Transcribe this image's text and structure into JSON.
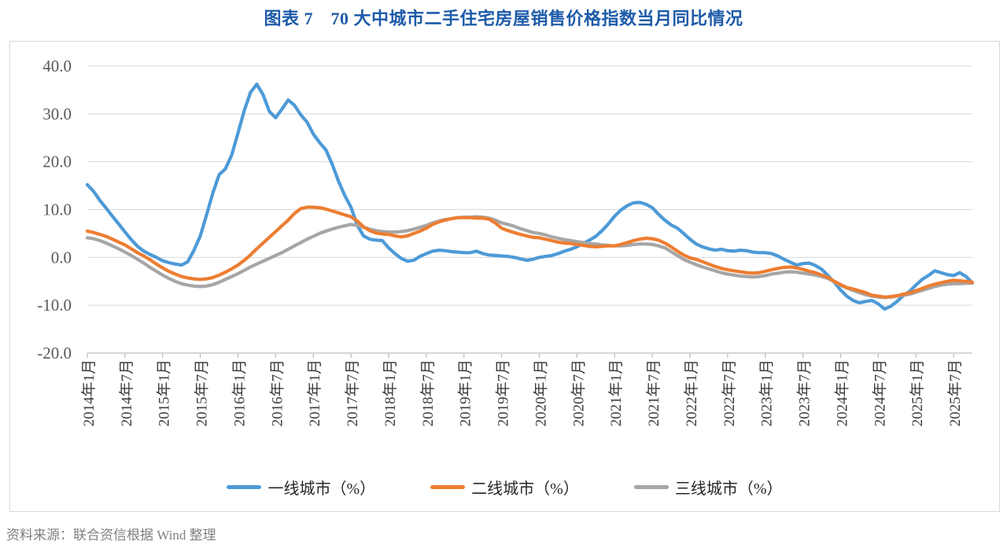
{
  "title": "图表 7　70 大中城市二手住宅房屋销售价格指数当月同比情况",
  "source_note": "资料来源：联合资信根据 Wind 整理",
  "colors": {
    "title": "#1d5ba9",
    "gridline": "#d9d9d9",
    "axis_line": "#bfbfbf",
    "y_tick_label": "#595959",
    "x_tick_label": "#3b3b3b",
    "first_tier": "#4d9ad7",
    "second_tier": "#ed7d31",
    "third_tier": "#a6a6a6"
  },
  "chart_data": {
    "type": "line",
    "title": "图表 7　70 大中城市二手住宅房屋销售价格指数当月同比情况",
    "frequency": "monthly",
    "x_start": "2014-01",
    "x_end": "2025-10",
    "ylim": [
      -20,
      40
    ],
    "y_tick_step": 10,
    "grid": "horizontal",
    "legend_position": "bottom",
    "y_tick_labels": [
      "40.0",
      "30.0",
      "20.0",
      "10.0",
      "0.0",
      "-10.0",
      "-20.0"
    ],
    "y_tick_values": [
      40,
      30,
      20,
      10,
      0,
      -10,
      -20
    ],
    "x_tick_labels": [
      "2014年1月",
      "2014年7月",
      "2015年1月",
      "2015年7月",
      "2016年1月",
      "2016年7月",
      "2017年1月",
      "2017年7月",
      "2018年1月",
      "2018年7月",
      "2019年1月",
      "2019年7月",
      "2020年1月",
      "2020年7月",
      "2021年1月",
      "2021年7月",
      "2022年1月",
      "2022年7月",
      "2023年1月",
      "2023年7月",
      "2024年1月",
      "2024年7月",
      "2025年1月",
      "2025年7月"
    ],
    "x_tick_every_n_months": 6,
    "series": [
      {
        "name": "一线城市（%）",
        "color": "#4d9ad7",
        "values": [
          15.2,
          13.8,
          11.9,
          10.3,
          8.6,
          7.0,
          5.3,
          3.7,
          2.3,
          1.3,
          0.6,
          0.0,
          -0.7,
          -1.1,
          -1.4,
          -1.6,
          -0.9,
          1.5,
          4.5,
          8.9,
          13.5,
          17.3,
          18.5,
          21.4,
          26.0,
          30.7,
          34.5,
          36.2,
          34.0,
          30.5,
          29.2,
          31.0,
          32.9,
          31.8,
          29.8,
          28.3,
          25.8,
          24.0,
          22.5,
          19.5,
          16.0,
          13.0,
          10.5,
          6.7,
          4.5,
          3.8,
          3.6,
          3.5,
          2.0,
          0.8,
          -0.2,
          -0.8,
          -0.6,
          0.2,
          0.8,
          1.3,
          1.5,
          1.4,
          1.2,
          1.1,
          1.0,
          1.0,
          1.3,
          0.8,
          0.5,
          0.4,
          0.3,
          0.2,
          0.0,
          -0.3,
          -0.6,
          -0.4,
          0.0,
          0.2,
          0.4,
          0.8,
          1.3,
          1.7,
          2.2,
          2.9,
          3.6,
          4.4,
          5.6,
          7.0,
          8.6,
          9.9,
          10.8,
          11.4,
          11.5,
          11.1,
          10.4,
          9.0,
          7.8,
          6.8,
          6.1,
          5.0,
          3.8,
          2.8,
          2.2,
          1.8,
          1.5,
          1.7,
          1.4,
          1.3,
          1.5,
          1.4,
          1.1,
          1.0,
          1.0,
          0.8,
          0.3,
          -0.4,
          -1.0,
          -1.6,
          -1.3,
          -1.2,
          -1.7,
          -2.5,
          -3.8,
          -5.2,
          -6.8,
          -8.1,
          -9.0,
          -9.5,
          -9.2,
          -9.0,
          -9.7,
          -10.8,
          -10.2,
          -9.2,
          -8.0,
          -7.1,
          -5.8,
          -4.6,
          -3.8,
          -2.8,
          -3.2,
          -3.6,
          -3.8,
          -3.2,
          -4.0,
          -5.3
        ]
      },
      {
        "name": "二线城市（%）",
        "color": "#ed7d31",
        "values": [
          5.5,
          5.2,
          4.8,
          4.4,
          3.8,
          3.2,
          2.6,
          1.8,
          1.0,
          0.3,
          -0.5,
          -1.4,
          -2.2,
          -2.9,
          -3.5,
          -4.0,
          -4.3,
          -4.5,
          -4.6,
          -4.5,
          -4.2,
          -3.7,
          -3.1,
          -2.4,
          -1.6,
          -0.6,
          0.5,
          1.8,
          3.0,
          4.2,
          5.4,
          6.6,
          7.8,
          9.2,
          10.2,
          10.5,
          10.5,
          10.4,
          10.1,
          9.7,
          9.3,
          8.9,
          8.5,
          7.6,
          6.4,
          5.6,
          5.1,
          4.9,
          4.8,
          4.5,
          4.3,
          4.5,
          5.0,
          5.5,
          6.1,
          6.9,
          7.4,
          7.8,
          8.1,
          8.3,
          8.3,
          8.3,
          8.2,
          8.2,
          8.0,
          7.2,
          6.1,
          5.6,
          5.2,
          4.8,
          4.5,
          4.2,
          4.1,
          3.8,
          3.5,
          3.2,
          3.0,
          2.9,
          2.7,
          2.5,
          2.3,
          2.2,
          2.3,
          2.4,
          2.4,
          2.7,
          3.1,
          3.5,
          3.8,
          4.0,
          3.9,
          3.6,
          3.0,
          2.2,
          1.3,
          0.5,
          -0.1,
          -0.4,
          -0.9,
          -1.4,
          -1.9,
          -2.3,
          -2.6,
          -2.8,
          -3.0,
          -3.2,
          -3.3,
          -3.2,
          -2.9,
          -2.6,
          -2.3,
          -2.1,
          -2.0,
          -2.2,
          -2.5,
          -2.9,
          -3.2,
          -3.7,
          -4.2,
          -5.0,
          -5.7,
          -6.3,
          -6.6,
          -7.0,
          -7.4,
          -7.9,
          -8.1,
          -8.3,
          -8.2,
          -8.0,
          -7.7,
          -7.4,
          -7.0,
          -6.5,
          -6.0,
          -5.6,
          -5.3,
          -5.0,
          -4.8,
          -4.9,
          -5.0,
          -5.2
        ]
      },
      {
        "name": "三线城市（%）",
        "color": "#a6a6a6",
        "values": [
          4.1,
          3.9,
          3.5,
          3.0,
          2.4,
          1.8,
          1.1,
          0.4,
          -0.4,
          -1.2,
          -2.1,
          -2.9,
          -3.7,
          -4.4,
          -5.0,
          -5.5,
          -5.8,
          -6.0,
          -6.1,
          -6.0,
          -5.7,
          -5.2,
          -4.6,
          -4.0,
          -3.4,
          -2.7,
          -2.0,
          -1.4,
          -0.8,
          -0.2,
          0.4,
          1.0,
          1.7,
          2.4,
          3.1,
          3.8,
          4.4,
          5.0,
          5.5,
          5.9,
          6.3,
          6.6,
          6.9,
          6.7,
          6.3,
          5.9,
          5.6,
          5.4,
          5.3,
          5.3,
          5.4,
          5.6,
          5.9,
          6.3,
          6.7,
          7.2,
          7.6,
          7.9,
          8.1,
          8.3,
          8.4,
          8.4,
          8.5,
          8.4,
          8.2,
          7.8,
          7.2,
          6.9,
          6.5,
          6.0,
          5.6,
          5.2,
          5.0,
          4.7,
          4.3,
          4.0,
          3.7,
          3.5,
          3.3,
          3.1,
          2.9,
          2.8,
          2.6,
          2.5,
          2.4,
          2.4,
          2.5,
          2.7,
          2.8,
          2.8,
          2.7,
          2.4,
          2.0,
          1.2,
          0.4,
          -0.4,
          -1.0,
          -1.5,
          -2.0,
          -2.4,
          -2.8,
          -3.2,
          -3.5,
          -3.7,
          -3.9,
          -4.0,
          -4.1,
          -4.0,
          -3.8,
          -3.5,
          -3.3,
          -3.1,
          -3.0,
          -3.1,
          -3.3,
          -3.5,
          -3.7,
          -4.0,
          -4.4,
          -5.1,
          -5.8,
          -6.4,
          -6.9,
          -7.4,
          -7.8,
          -8.1,
          -8.3,
          -8.4,
          -8.3,
          -8.1,
          -7.9,
          -7.7,
          -7.3,
          -6.9,
          -6.5,
          -6.1,
          -5.8,
          -5.6,
          -5.5,
          -5.5,
          -5.4,
          -5.4
        ]
      }
    ]
  }
}
